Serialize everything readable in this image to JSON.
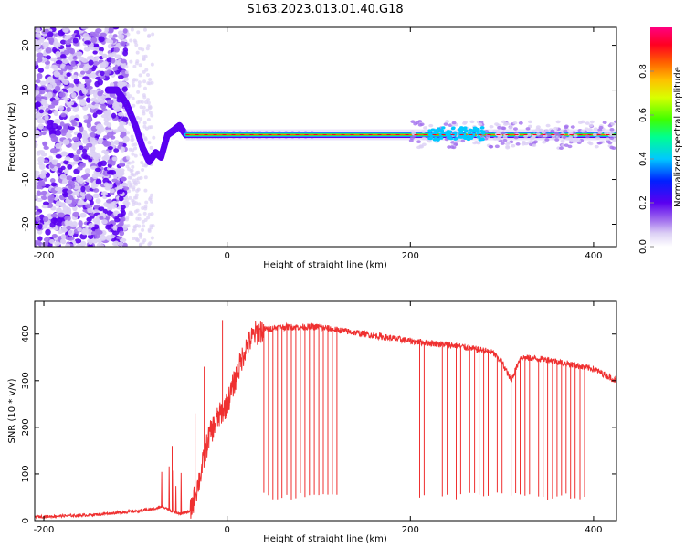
{
  "title": "S163.2023.013.01.40.G18",
  "chart_data": [
    {
      "type": "heatmap",
      "xlabel": "Height of straight line (km)",
      "ylabel": "Frequency (Hz)",
      "xlim": [
        -210,
        425
      ],
      "ylim": [
        -25,
        24
      ],
      "xticks": [
        -200,
        0,
        200,
        400
      ],
      "yticks": [
        20,
        10,
        0,
        -10,
        -20
      ],
      "colorbar": {
        "label": "Normalized spectral amplitude",
        "ticks": [
          0.0,
          0.2,
          0.4,
          0.6,
          0.8
        ],
        "range": [
          0,
          1
        ],
        "colormap": [
          "#ffffff",
          "#dcd0f5",
          "#a270ee",
          "#5a00f0",
          "#0020ff",
          "#00c8ff",
          "#00ff90",
          "#40ff00",
          "#d8ff00",
          "#ffc000",
          "#ff6000",
          "#ff0020",
          "#ff0080"
        ]
      },
      "trace": {
        "description_points_x": [
          -130,
          -120,
          -110,
          -100,
          -92,
          -85,
          -78,
          -72,
          -65,
          -58,
          -52,
          -45,
          0,
          100,
          200,
          230,
          260,
          300,
          350,
          425
        ],
        "description_points_y": [
          10,
          10,
          7,
          2,
          -3,
          -6,
          -4,
          -5,
          0,
          1,
          2,
          0,
          0,
          0,
          0,
          1,
          1,
          0,
          0,
          0
        ]
      }
    },
    {
      "type": "line",
      "xlabel": "Height of straight line (km)",
      "ylabel": "SNR (10 * v/v)",
      "xlim": [
        -210,
        425
      ],
      "ylim": [
        0,
        470
      ],
      "xticks": [
        -200,
        0,
        200,
        400
      ],
      "yticks": [
        400,
        300,
        200,
        100,
        0
      ],
      "color": "#ef3030",
      "envelope_x": [
        -210,
        -150,
        -100,
        -80,
        -70,
        -60,
        -50,
        -40,
        -30,
        -20,
        -10,
        0,
        10,
        20,
        30,
        40,
        60,
        100,
        150,
        200,
        250,
        280,
        290,
        300,
        310,
        320,
        350,
        400,
        425
      ],
      "envelope_y": [
        8,
        12,
        20,
        25,
        30,
        20,
        15,
        20,
        90,
        180,
        220,
        250,
        310,
        370,
        400,
        410,
        415,
        415,
        400,
        385,
        375,
        365,
        360,
        340,
        300,
        350,
        345,
        325,
        300
      ],
      "dropouts_x": [
        40,
        45,
        50,
        55,
        60,
        65,
        70,
        75,
        80,
        85,
        90,
        95,
        100,
        105,
        110,
        115,
        120,
        210,
        215,
        235,
        240,
        250,
        255,
        265,
        270,
        275,
        280,
        285,
        295,
        300,
        310,
        315,
        320,
        325,
        330,
        340,
        345,
        350,
        355,
        360,
        365,
        370,
        375,
        380,
        385,
        390
      ],
      "dropout_floor": 45
    }
  ]
}
